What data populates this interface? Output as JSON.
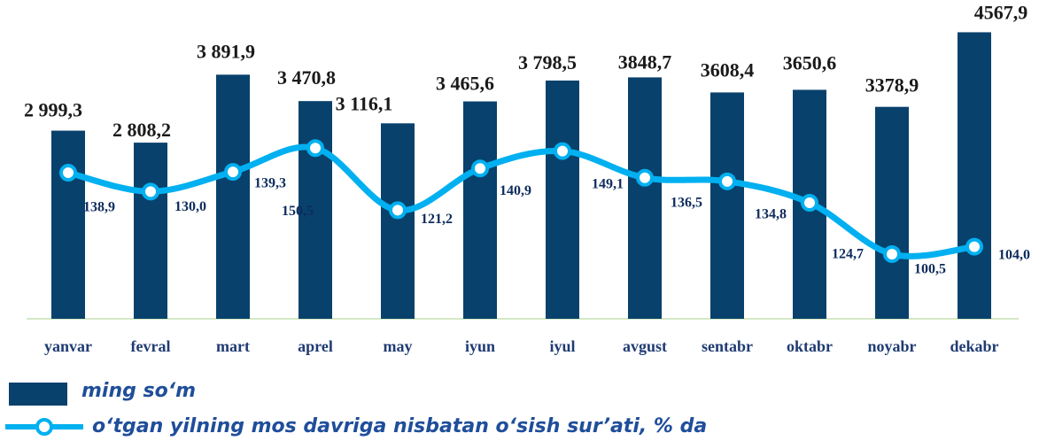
{
  "chart_data": {
    "type": "bar-line",
    "categories": [
      "yanvar",
      "fevral",
      "mart",
      "aprel",
      "may",
      "iyun",
      "iyul",
      "avgust",
      "sentabr",
      "oktabr",
      "noyabr",
      "dekabr"
    ],
    "series": [
      {
        "name": "ming so‘m",
        "color": "#08416c",
        "type": "bar",
        "values": [
          2999.3,
          2808.2,
          3891.9,
          3470.8,
          3116.1,
          3465.6,
          3798.5,
          3848.7,
          3608.4,
          3650.6,
          3378.9,
          4567.9
        ],
        "value_labels": [
          "2 999,3",
          "2 808,2",
          "3 891,9",
          "3 470,8",
          "3 116,1",
          "3 465,6",
          "3 798,5",
          "3848,7",
          "3608,4",
          "3650,6",
          "3378,9",
          "4567,9"
        ]
      },
      {
        "name": "o‘tgan yilning mos davriga nisbatan o‘sish sur’ati, % da",
        "color": "#00b0f0",
        "type": "line",
        "axis": "y2",
        "values": [
          138.9,
          130.0,
          139.3,
          150.5,
          121.2,
          140.9,
          149.1,
          136.5,
          134.8,
          124.7,
          100.5,
          104.0
        ],
        "value_labels": [
          "138,9",
          "130,0",
          "139,3",
          "150,5",
          "121,2",
          "140,9",
          "149,1",
          "136,5",
          "134,8",
          "124,7",
          "100,5",
          "104,0"
        ]
      }
    ],
    "ylim": [
      0,
      4800
    ],
    "y2lim": [
      70,
      212
    ]
  }
}
